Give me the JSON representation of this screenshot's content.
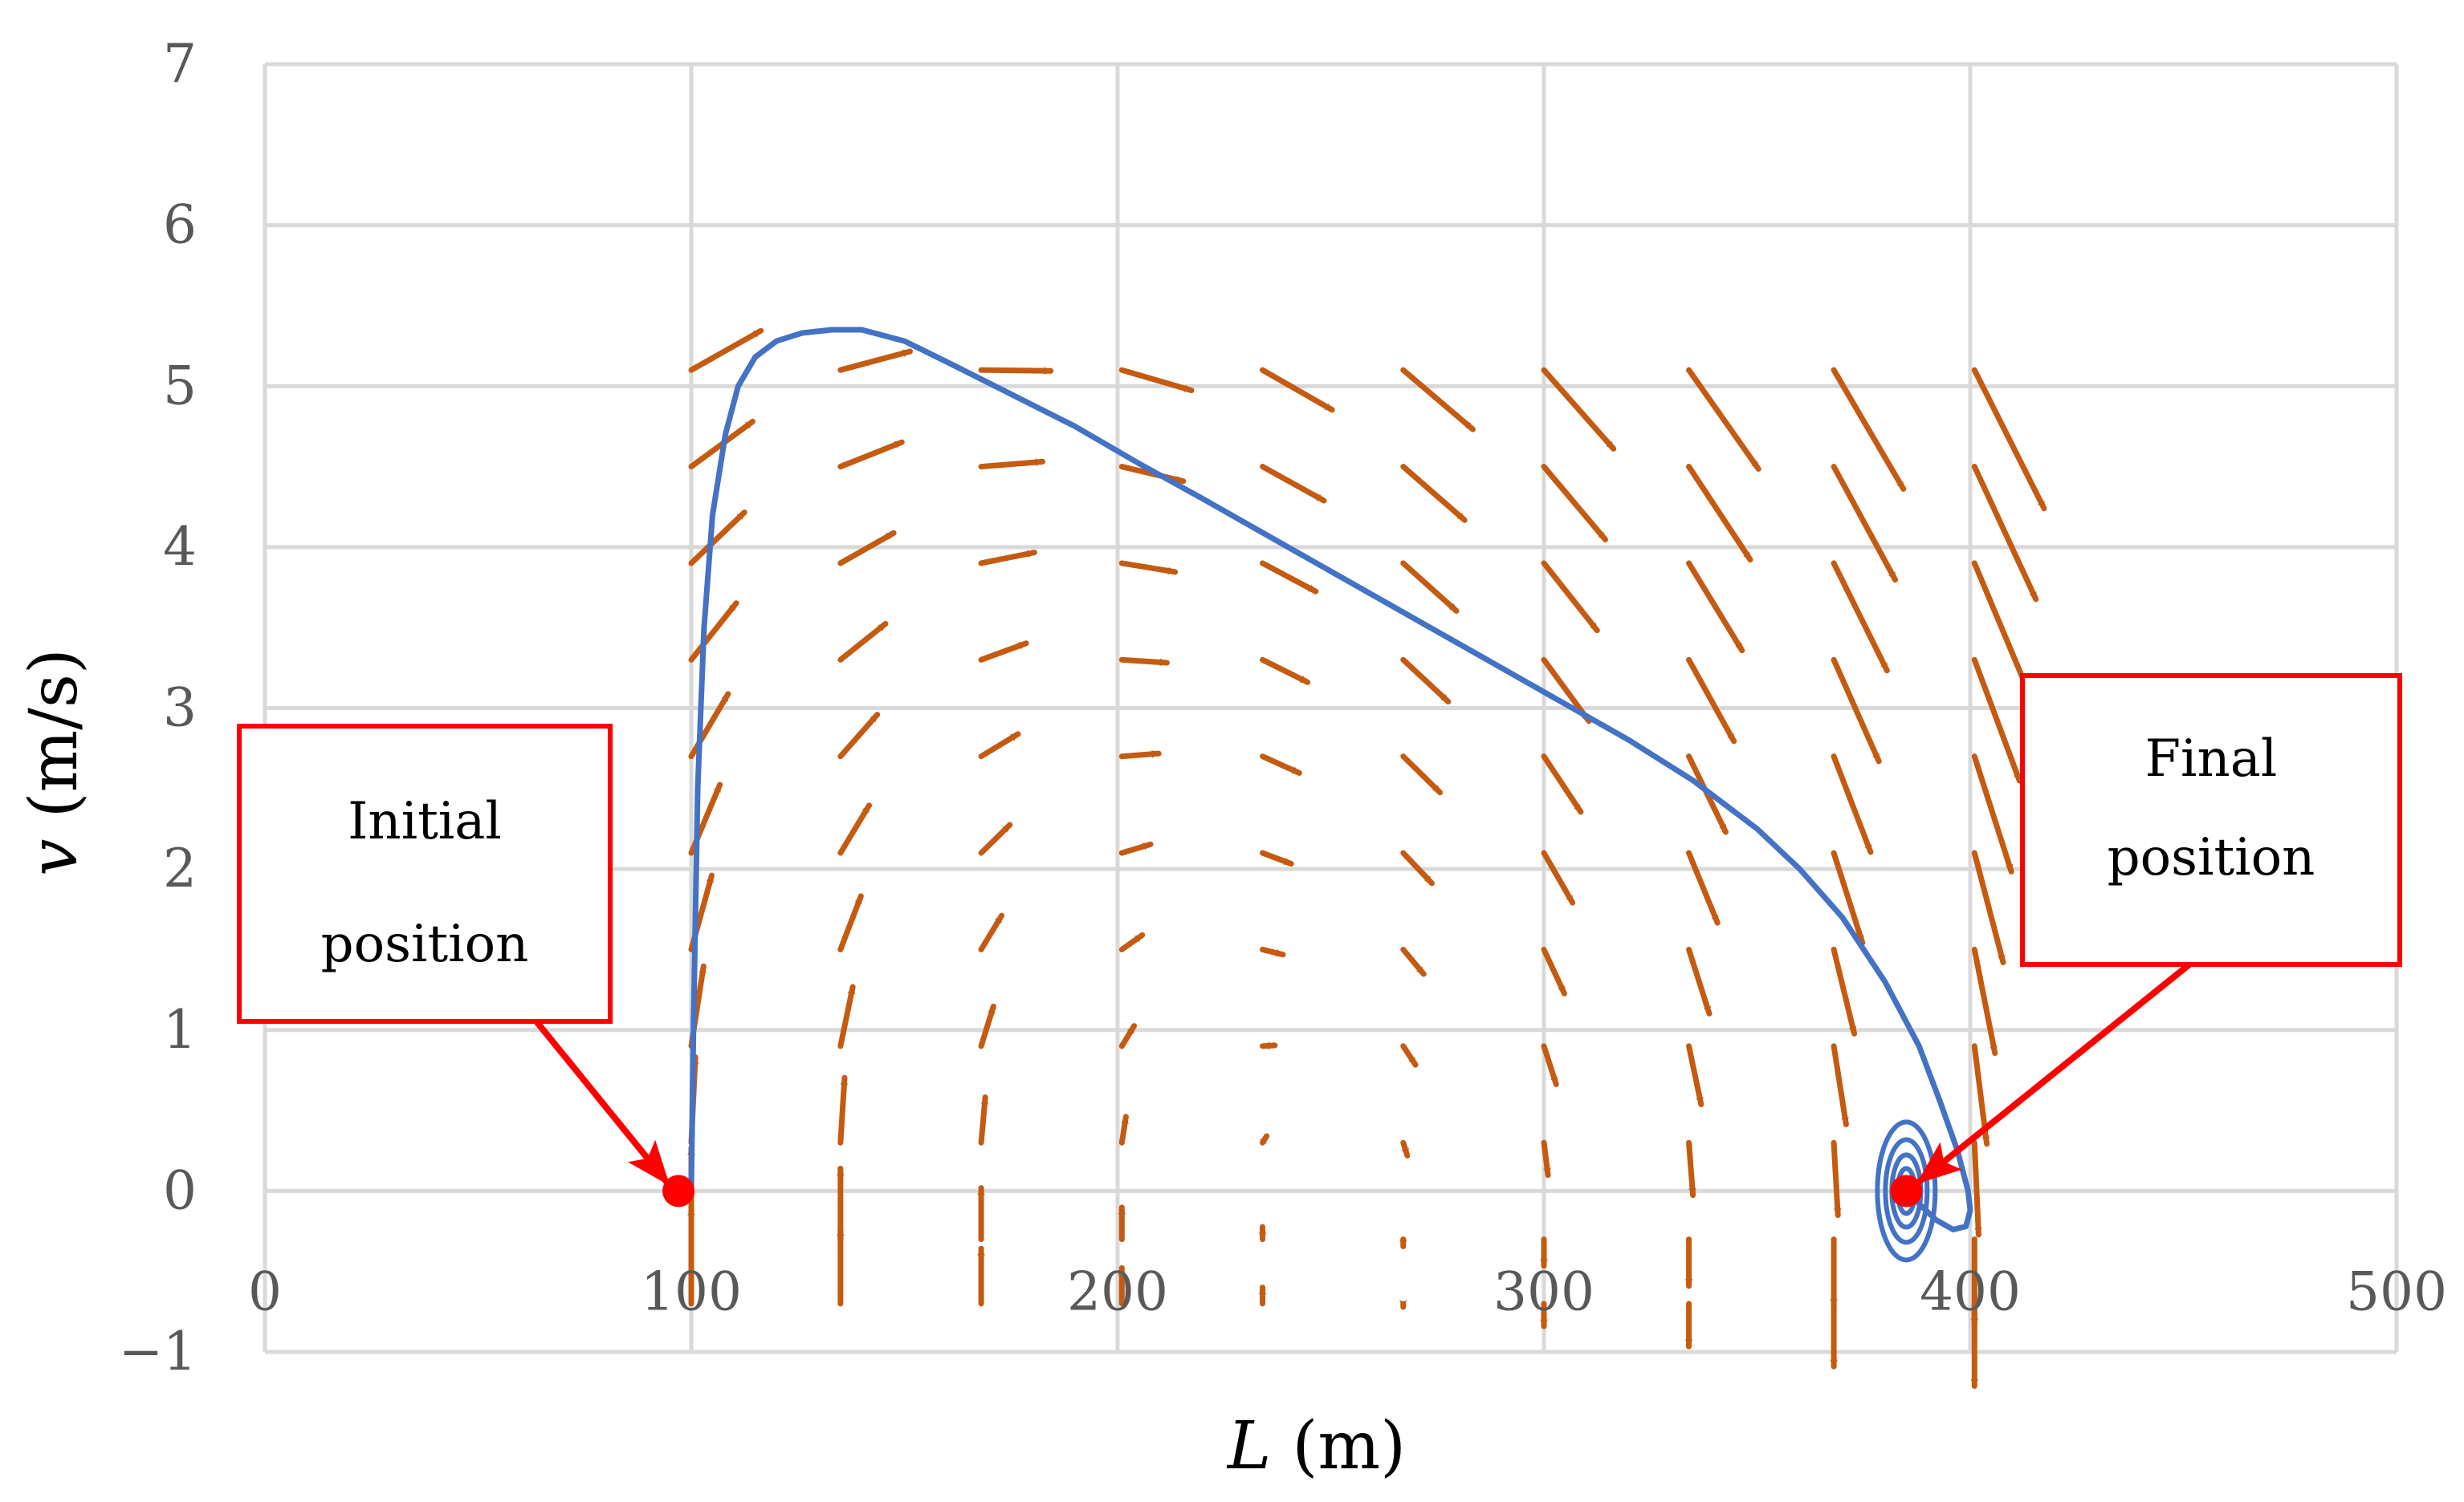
{
  "chart_data": {
    "type": "scatter",
    "title": "",
    "xlabel": {
      "var": "L",
      "unit": " (m)"
    },
    "ylabel": {
      "var": "v",
      "unit": " (m/s)"
    },
    "xlim": [
      0,
      500
    ],
    "ylim": [
      -1,
      7
    ],
    "x_ticks": [
      0,
      100,
      200,
      300,
      400,
      500
    ],
    "y_ticks": [
      -1,
      0,
      1,
      2,
      3,
      4,
      5,
      6,
      7
    ],
    "x_tick_labels": [
      "0",
      "100",
      "200",
      "300",
      "400",
      "500"
    ],
    "y_tick_labels": [
      "−1",
      "0",
      "1",
      "2",
      "3",
      "4",
      "5",
      "6",
      "7"
    ],
    "grid": true,
    "colors": {
      "trajectory": "#4472C4",
      "field": "#C55A11",
      "marker": "#FF0000",
      "callout": "#FF0000",
      "grid": "#D9D9D9"
    },
    "trajectory": {
      "L": [
        100,
        100.5,
        101.5,
        103,
        105,
        108,
        111,
        115,
        120,
        126,
        133,
        140,
        150,
        160,
        175,
        190,
        205,
        220,
        240,
        260,
        280,
        300,
        320,
        335,
        350,
        360,
        370,
        380,
        388,
        393,
        397,
        399.5,
        400,
        399,
        396,
        392,
        388,
        386
      ],
      "v": [
        0,
        1.0,
        2.5,
        3.5,
        4.2,
        4.7,
        5.0,
        5.18,
        5.28,
        5.33,
        5.35,
        5.35,
        5.28,
        5.15,
        4.95,
        4.75,
        4.52,
        4.3,
        4.0,
        3.7,
        3.4,
        3.1,
        2.8,
        2.55,
        2.25,
        2.0,
        1.7,
        1.3,
        0.9,
        0.55,
        0.25,
        0.0,
        -0.12,
        -0.22,
        -0.24,
        -0.18,
        -0.08,
        0.0
      ]
    },
    "spiral_center": {
      "L": 385,
      "v": 0
    },
    "vector_field": {
      "columns_L": [
        100,
        135,
        168,
        201,
        234,
        267,
        300,
        334,
        368,
        401
      ],
      "rows_v": [
        -0.7,
        -0.3,
        0.3,
        0.9,
        1.5,
        2.1,
        2.7,
        3.3,
        3.9,
        4.5,
        5.1
      ],
      "dv_scale": 0.55,
      "dl_per_velocity": 3.2
    },
    "annotations": [
      {
        "text_lines": [
          "Initial",
          "position"
        ],
        "point": {
          "L": 97,
          "v": 0
        }
      },
      {
        "text_lines": [
          "Final",
          "position"
        ],
        "point": {
          "L": 385,
          "v": 0
        }
      }
    ]
  }
}
